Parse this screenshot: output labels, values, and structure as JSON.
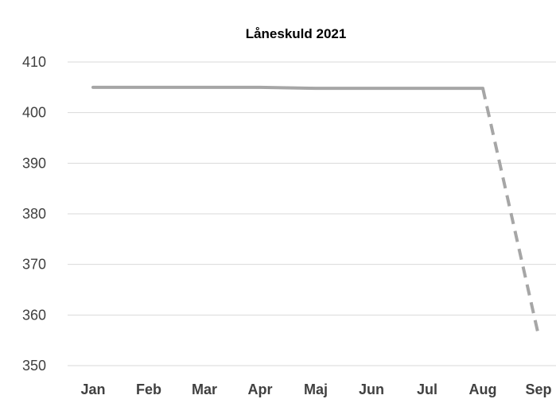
{
  "chart_data": {
    "type": "line",
    "title": "Låneskuld 2021",
    "xlabel": "",
    "ylabel": "",
    "categories": [
      "Jan",
      "Feb",
      "Mar",
      "Apr",
      "Maj",
      "Jun",
      "Jul",
      "Aug",
      "Sep"
    ],
    "ylim": [
      350,
      410
    ],
    "yticks": [
      350,
      360,
      370,
      380,
      390,
      400,
      410
    ],
    "grid": true,
    "legend": "none",
    "series": [
      {
        "values": [
          405,
          405,
          405,
          405,
          404.8,
          404.8,
          404.8,
          404.8,
          356
        ],
        "solid_until_index": 7,
        "line_style_after": "dashed",
        "color": "#a6a6a6"
      }
    ]
  },
  "colors": {
    "line": "#a6a6a6",
    "grid": "#d9d9d9",
    "tick_text": "#404040",
    "title_text": "#000000"
  }
}
